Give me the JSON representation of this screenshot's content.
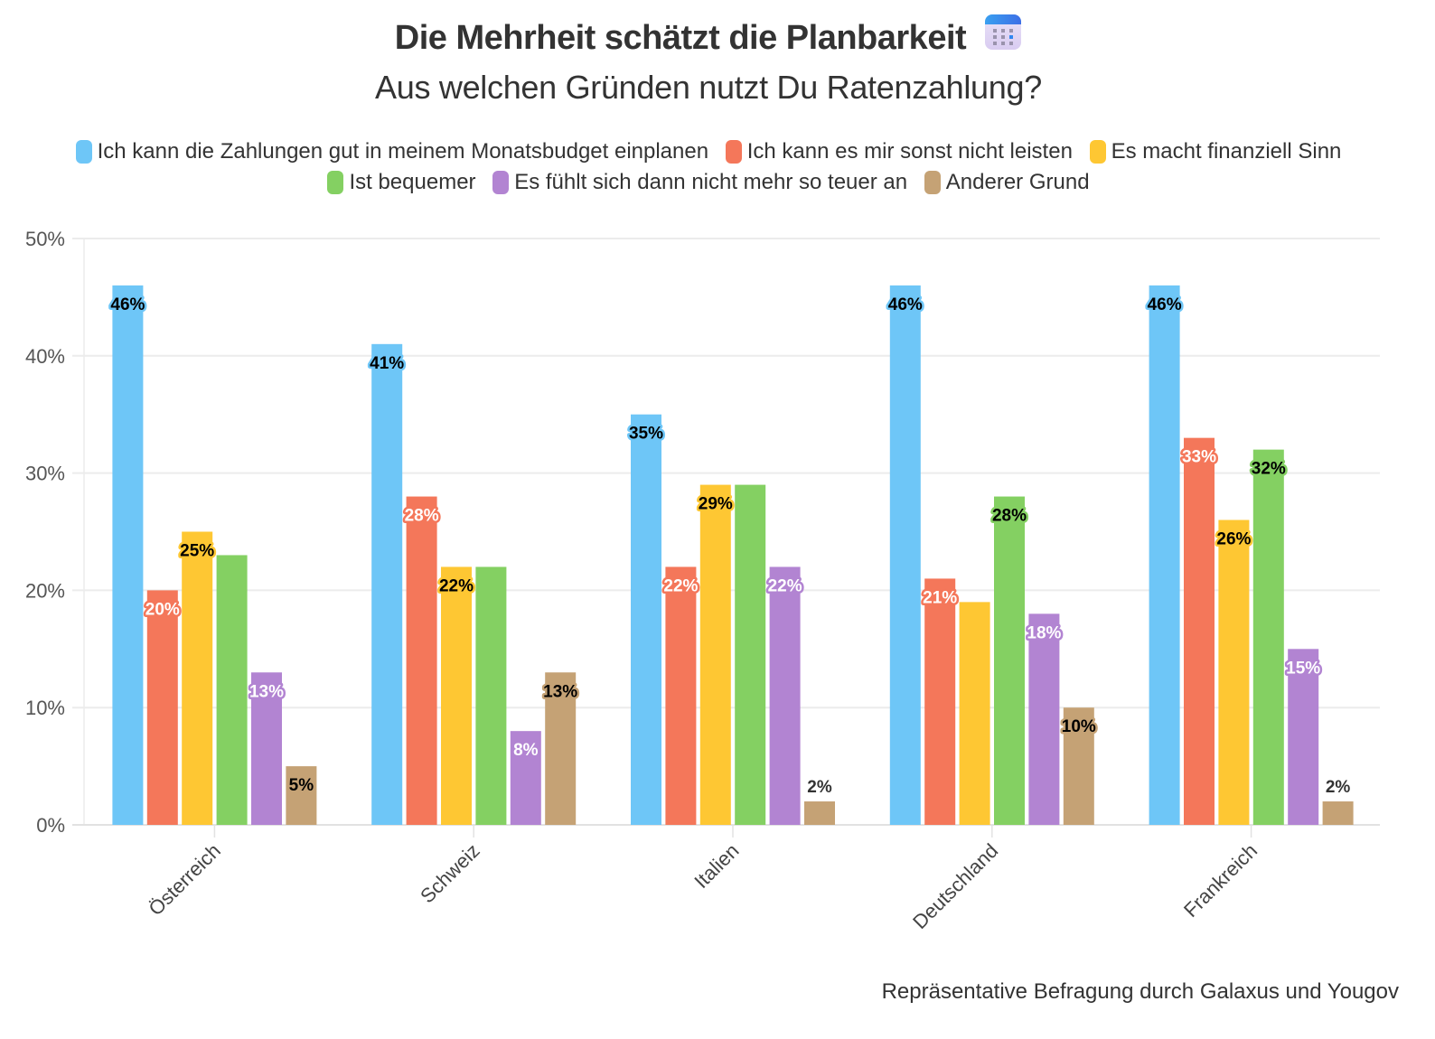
{
  "header": {
    "title": "Die Mehrheit schätzt die Planbarkeit",
    "title_icon": "calendar-icon",
    "subtitle": "Aus welchen Gründen nutzt Du Ratenzahlung?"
  },
  "footer": {
    "source": "Repräsentative Befragung durch Galaxus und Yougov"
  },
  "chart_data": {
    "type": "bar",
    "title": "Die Mehrheit schätzt die Planbarkeit",
    "subtitle": "Aus welchen Gründen nutzt Du Ratenzahlung?",
    "xlabel": "",
    "ylabel": "",
    "ylim": [
      0,
      50
    ],
    "yticks": [
      0,
      10,
      20,
      30,
      40,
      50
    ],
    "ytick_labels": [
      "0%",
      "10%",
      "20%",
      "30%",
      "40%",
      "50%"
    ],
    "grid": true,
    "legend_position": "top-center",
    "categories": [
      "Österreich",
      "Schweiz",
      "Italien",
      "Deutschland",
      "Frankreich"
    ],
    "series": [
      {
        "name": "Ich kann die Zahlungen gut in meinem Monatsbudget einplanen",
        "color": "#6ec6f7",
        "label_color": "#000000",
        "values": [
          46,
          41,
          35,
          46,
          46
        ],
        "labels": [
          "46%",
          "41%",
          "35%",
          "46%",
          "46%"
        ]
      },
      {
        "name": "Ich kann es mir sonst nicht leisten",
        "color": "#f4775a",
        "label_color": "#ffffff",
        "values": [
          20,
          28,
          22,
          21,
          33
        ],
        "labels": [
          "20%",
          "28%",
          "22%",
          "21%",
          "33%"
        ]
      },
      {
        "name": "Es macht finanziell Sinn",
        "color": "#fec733",
        "label_color": "#000000",
        "values": [
          25,
          22,
          29,
          19,
          26
        ],
        "labels": [
          "25%",
          "22%",
          "29%",
          "",
          "26%"
        ]
      },
      {
        "name": "Ist bequemer",
        "color": "#84d062",
        "label_color": "#000000",
        "values": [
          23,
          22,
          29,
          28,
          32
        ],
        "labels": [
          "",
          "",
          "",
          "28%",
          "32%"
        ]
      },
      {
        "name": "Es fühlt sich dann nicht mehr so teuer an",
        "color": "#b284d2",
        "label_color": "#ffffff",
        "values": [
          13,
          8,
          22,
          18,
          15
        ],
        "labels": [
          "13%",
          "8%",
          "22%",
          "18%",
          "15%"
        ]
      },
      {
        "name": "Anderer Grund",
        "color": "#c5a275",
        "label_color": "#000000",
        "values": [
          5,
          13,
          2,
          10,
          2
        ],
        "labels": [
          "5%",
          "13%",
          "2%",
          "10%",
          "2%"
        ]
      }
    ]
  }
}
